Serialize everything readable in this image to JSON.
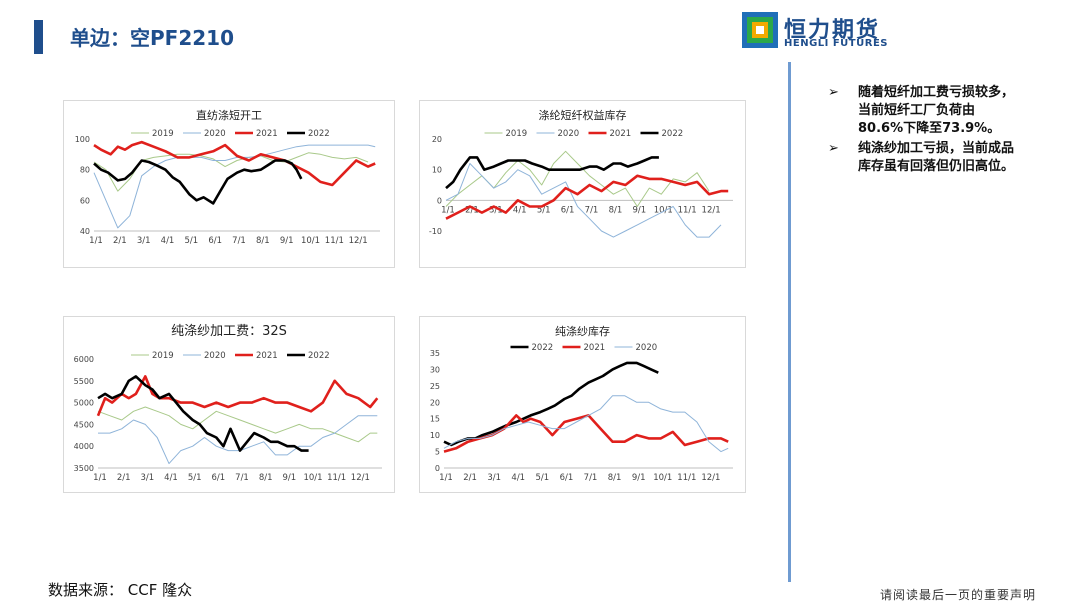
{
  "header": {
    "title": "单边：空PF2210"
  },
  "logo": {
    "cn": "恒力期货",
    "en": "HENGLI FUTURES"
  },
  "notes": [
    {
      "arrow": "➢",
      "text": "随着短纤加工费亏损较多，当前短纤工厂负荷由80.6%下降至73.9%。"
    },
    {
      "arrow": "➢",
      "text": "纯涤纱加工亏损，当前成品库存虽有回落但仍旧高位。"
    }
  ],
  "footer": {
    "source": "数据来源： CCF 隆众",
    "disclaimer": "请阅读最后一页的重要声明"
  },
  "colors": {
    "2019": "#a9c98a",
    "2020": "#8fb4d9",
    "2021": "#e0201c",
    "2022": "#000000"
  },
  "chart_data": [
    {
      "type": "line",
      "title": "直纺涤短开工",
      "categories": [
        "1/1",
        "2/1",
        "3/1",
        "4/1",
        "5/1",
        "6/1",
        "7/1",
        "8/1",
        "9/1",
        "10/1",
        "11/1",
        "12/1"
      ],
      "ylim": [
        40,
        100
      ],
      "yticks": [
        40,
        60,
        80,
        100
      ],
      "legend": "top",
      "series": [
        {
          "name": "2019",
          "x": [
            0,
            0.5,
            1,
            1.5,
            2,
            2.5,
            3,
            3.5,
            4,
            4.5,
            5,
            5.5,
            6,
            6.5,
            7,
            7.5,
            8,
            8.5,
            9,
            9.5,
            10,
            10.5,
            11,
            11.5
          ],
          "y": [
            85,
            80,
            66,
            74,
            86,
            88,
            89,
            90,
            90,
            89,
            87,
            82,
            86,
            88,
            89,
            86,
            85,
            88,
            91,
            90,
            88,
            87,
            88,
            85
          ]
        },
        {
          "name": "2020",
          "x": [
            0,
            0.5,
            1,
            1.5,
            2,
            2.5,
            3,
            3.5,
            4,
            4.5,
            5,
            5.5,
            6,
            6.5,
            7,
            7.5,
            8,
            8.5,
            9,
            9.5,
            10,
            10.5,
            11,
            11.5,
            11.8
          ],
          "y": [
            78,
            60,
            42,
            50,
            76,
            82,
            86,
            88,
            88,
            88,
            86,
            86,
            88,
            88,
            89,
            91,
            93,
            95,
            96,
            96,
            96,
            96,
            96,
            96,
            95
          ]
        },
        {
          "name": "2021",
          "x": [
            0,
            0.3,
            0.7,
            1,
            1.3,
            1.6,
            2,
            2.5,
            3,
            3.5,
            4,
            4.5,
            5,
            5.5,
            6,
            6.5,
            7,
            7.5,
            8,
            8.5,
            9,
            9.5,
            10,
            10.5,
            11,
            11.5,
            11.8
          ],
          "y": [
            96,
            93,
            90,
            95,
            93,
            96,
            98,
            95,
            92,
            88,
            88,
            90,
            92,
            96,
            89,
            86,
            90,
            88,
            86,
            82,
            78,
            72,
            70,
            78,
            86,
            82,
            84
          ]
        },
        {
          "name": "2022",
          "x": [
            0,
            0.3,
            0.6,
            1,
            1.3,
            1.6,
            2,
            2.3,
            2.6,
            3,
            3.3,
            3.6,
            4,
            4.3,
            4.6,
            5,
            5.3,
            5.6,
            6,
            6.3,
            6.6,
            7,
            7.3,
            7.6,
            8,
            8.3,
            8.5,
            8.7
          ],
          "y": [
            84,
            80,
            78,
            73,
            74,
            78,
            86,
            85,
            83,
            80,
            75,
            72,
            64,
            60,
            62,
            58,
            66,
            74,
            78,
            80,
            79,
            80,
            83,
            86,
            86,
            84,
            80,
            74
          ]
        }
      ]
    },
    {
      "type": "line",
      "title": "涤纶短纤权益库存",
      "categories": [
        "1/1",
        "2/1",
        "3/1",
        "4/1",
        "5/1",
        "6/1",
        "7/1",
        "8/1",
        "9/1",
        "10/1",
        "11/1",
        "12/1"
      ],
      "ylim": [
        -10,
        20
      ],
      "yticks": [
        -10,
        0,
        10,
        20
      ],
      "legend": "top",
      "series": [
        {
          "name": "2019",
          "x": [
            0,
            0.5,
            1,
            1.5,
            2,
            2.5,
            3,
            3.5,
            4,
            4.5,
            5,
            5.5,
            6,
            6.5,
            7,
            7.5,
            8,
            8.5,
            9,
            9.5,
            10,
            10.5,
            11
          ],
          "y": [
            -2,
            2,
            5,
            8,
            4,
            9,
            13,
            10,
            5,
            12,
            16,
            12,
            8,
            5,
            2,
            4,
            -2,
            4,
            2,
            7,
            6,
            9,
            3
          ]
        },
        {
          "name": "2020",
          "x": [
            0,
            0.5,
            1,
            1.5,
            2,
            2.5,
            3,
            3.5,
            4,
            4.5,
            5,
            5.5,
            6,
            6.5,
            7,
            7.5,
            8,
            8.5,
            9,
            9.5,
            10,
            10.5,
            11,
            11.5
          ],
          "y": [
            0,
            2,
            12,
            8,
            4,
            6,
            10,
            8,
            2,
            4,
            6,
            -2,
            -6,
            -10,
            -12,
            -10,
            -8,
            -6,
            -4,
            -2,
            -8,
            -12,
            -12,
            -8
          ]
        },
        {
          "name": "2021",
          "x": [
            0,
            0.5,
            1,
            1.5,
            2,
            2.5,
            3,
            3.5,
            4,
            4.5,
            5,
            5.5,
            6,
            6.5,
            7,
            7.5,
            8,
            8.5,
            9,
            9.5,
            10,
            10.5,
            11,
            11.5,
            11.8
          ],
          "y": [
            -6,
            -4,
            -2,
            -4,
            -2,
            -4,
            0,
            -2,
            -2,
            0,
            4,
            2,
            5,
            3,
            6,
            5,
            8,
            7,
            7,
            6,
            5,
            6,
            2,
            3,
            3
          ]
        },
        {
          "name": "2022",
          "x": [
            0,
            0.3,
            0.6,
            1,
            1.3,
            1.6,
            2,
            2.3,
            2.6,
            3,
            3.3,
            3.6,
            4,
            4.3,
            4.6,
            5,
            5.3,
            5.6,
            6,
            6.3,
            6.6,
            7,
            7.3,
            7.6,
            8,
            8.3,
            8.6,
            8.9
          ],
          "y": [
            4,
            6,
            10,
            14,
            14,
            10,
            11,
            12,
            13,
            13,
            13,
            12,
            11,
            10,
            10,
            10,
            10,
            10,
            11,
            11,
            10,
            12,
            12,
            11,
            12,
            13,
            14,
            14
          ]
        }
      ]
    },
    {
      "type": "line",
      "title": "纯涤纱加工费：32S",
      "categories": [
        "1/1",
        "2/1",
        "3/1",
        "4/1",
        "5/1",
        "6/1",
        "7/1",
        "8/1",
        "9/1",
        "10/1",
        "11/1",
        "12/1"
      ],
      "ylim": [
        3500,
        6000
      ],
      "yticks": [
        3500,
        4000,
        4500,
        5000,
        5500,
        6000
      ],
      "legend": "top",
      "series": [
        {
          "name": "2019",
          "x": [
            0,
            0.5,
            1,
            1.5,
            2,
            2.5,
            3,
            3.5,
            4,
            4.5,
            5,
            5.5,
            6,
            6.5,
            7,
            7.5,
            8,
            8.5,
            9,
            9.5,
            10,
            10.5,
            11,
            11.5,
            11.8
          ],
          "y": [
            4800,
            4700,
            4600,
            4800,
            4900,
            4800,
            4700,
            4500,
            4400,
            4600,
            4800,
            4700,
            4600,
            4500,
            4400,
            4300,
            4400,
            4500,
            4400,
            4400,
            4300,
            4200,
            4100,
            4300,
            4300
          ]
        },
        {
          "name": "2020",
          "x": [
            0,
            0.5,
            1,
            1.5,
            2,
            2.5,
            3,
            3.5,
            4,
            4.5,
            5,
            5.5,
            6,
            6.5,
            7,
            7.5,
            8,
            8.5,
            9,
            9.5,
            10,
            10.5,
            11,
            11.5,
            11.8
          ],
          "y": [
            4300,
            4300,
            4400,
            4600,
            4500,
            4200,
            3600,
            3900,
            4000,
            4200,
            4000,
            3900,
            3900,
            4000,
            4100,
            3800,
            3800,
            4000,
            4000,
            4200,
            4300,
            4500,
            4700,
            4700,
            4700
          ]
        },
        {
          "name": "2021",
          "x": [
            0,
            0.3,
            0.6,
            1,
            1.3,
            1.6,
            2,
            2.3,
            2.6,
            3,
            3.5,
            4,
            4.5,
            5,
            5.5,
            6,
            6.5,
            7,
            7.5,
            8,
            8.5,
            9,
            9.5,
            10,
            10.5,
            11,
            11.5,
            11.8
          ],
          "y": [
            4700,
            5100,
            5000,
            5200,
            5100,
            5200,
            5600,
            5200,
            5100,
            5100,
            5000,
            5000,
            4900,
            5000,
            4900,
            5000,
            5000,
            5100,
            5000,
            5000,
            4900,
            4800,
            5000,
            5500,
            5200,
            5100,
            4900,
            5100
          ]
        },
        {
          "name": "2022",
          "x": [
            0,
            0.3,
            0.6,
            1,
            1.3,
            1.6,
            2,
            2.3,
            2.6,
            3,
            3.3,
            3.6,
            4,
            4.3,
            4.6,
            5,
            5.3,
            5.6,
            6,
            6.3,
            6.6,
            7,
            7.3,
            7.6,
            8,
            8.3,
            8.6,
            8.9
          ],
          "y": [
            5100,
            5200,
            5100,
            5200,
            5500,
            5600,
            5400,
            5300,
            5100,
            5200,
            5000,
            4800,
            4600,
            4500,
            4300,
            4200,
            4000,
            4400,
            3900,
            4100,
            4300,
            4200,
            4100,
            4100,
            4000,
            4000,
            3900,
            3900
          ]
        }
      ]
    },
    {
      "type": "line",
      "title": "纯涤纱库存",
      "categories": [
        "1/1",
        "2/1",
        "3/1",
        "4/1",
        "5/1",
        "6/1",
        "7/1",
        "8/1",
        "9/1",
        "10/1",
        "11/1",
        "12/1"
      ],
      "ylim": [
        0,
        35
      ],
      "yticks": [
        0,
        5,
        10,
        15,
        20,
        25,
        30,
        35
      ],
      "legend": "top",
      "series": [
        {
          "name": "2022",
          "x": [
            0,
            0.3,
            0.6,
            1,
            1.3,
            1.6,
            2,
            2.3,
            2.6,
            3,
            3.3,
            3.6,
            4,
            4.3,
            4.6,
            5,
            5.3,
            5.6,
            6,
            6.3,
            6.6,
            7,
            7.3,
            7.6,
            8,
            8.3,
            8.6,
            8.9
          ],
          "y": [
            8,
            7,
            8,
            9,
            9,
            10,
            11,
            12,
            13,
            14,
            15,
            16,
            17,
            18,
            19,
            21,
            22,
            24,
            26,
            27,
            28,
            30,
            31,
            32,
            32,
            31,
            30,
            29
          ]
        },
        {
          "name": "2021",
          "x": [
            0,
            0.5,
            1,
            1.5,
            2,
            2.5,
            3,
            3.3,
            3.6,
            4,
            4.5,
            5,
            5.5,
            6,
            6.5,
            7,
            7.5,
            8,
            8.5,
            9,
            9.5,
            10,
            10.5,
            11,
            11.5,
            11.8
          ],
          "y": [
            5,
            6,
            8,
            9,
            10,
            12,
            16,
            14,
            15,
            14,
            10,
            14,
            15,
            16,
            12,
            8,
            8,
            10,
            9,
            9,
            11,
            7,
            8,
            9,
            9,
            8
          ]
        },
        {
          "name": "2020",
          "x": [
            0,
            0.5,
            1,
            1.5,
            2,
            2.5,
            3,
            3.5,
            4,
            4.5,
            5,
            5.5,
            6,
            6.5,
            7,
            7.5,
            8,
            8.5,
            9,
            9.5,
            10,
            10.5,
            11,
            11.5,
            11.8
          ],
          "y": [
            6,
            8,
            9,
            9,
            10,
            12,
            13,
            14,
            13,
            12,
            12,
            14,
            16,
            18,
            22,
            22,
            20,
            20,
            18,
            17,
            17,
            14,
            8,
            5,
            6
          ]
        }
      ]
    }
  ]
}
